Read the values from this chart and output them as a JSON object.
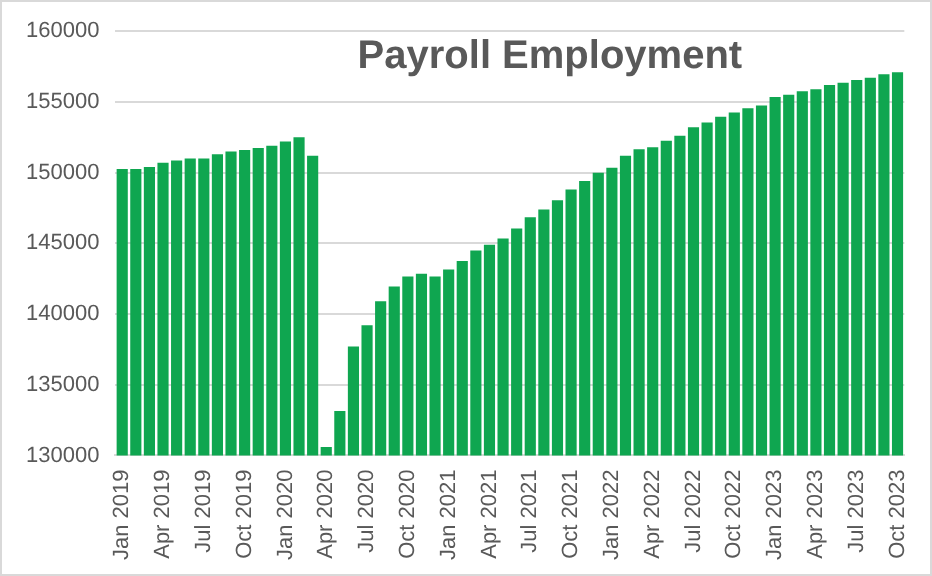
{
  "chart_data": {
    "type": "bar",
    "title": "Payroll Employment",
    "categories": [
      "Jan 2019",
      null,
      null,
      "Apr 2019",
      null,
      null,
      "Jul 2019",
      null,
      null,
      "Oct 2019",
      null,
      null,
      "Jan 2020",
      null,
      null,
      "Apr 2020",
      null,
      null,
      "Jul 2020",
      null,
      null,
      "Oct 2020",
      null,
      null,
      "Jan 2021",
      null,
      null,
      "Apr 2021",
      null,
      null,
      "Jul 2021",
      null,
      null,
      "Oct 2021",
      null,
      null,
      "Jan 2022",
      null,
      null,
      "Apr 2022",
      null,
      null,
      "Jul 2022",
      null,
      null,
      "Oct 2022",
      null,
      null,
      "Jan 2023",
      null,
      null,
      "Apr 2023",
      null,
      null,
      "Jul 2023",
      null,
      null,
      "Oct 2023"
    ],
    "values": [
      150250,
      150250,
      150400,
      150700,
      150850,
      151000,
      151000,
      151300,
      151500,
      151600,
      151750,
      151900,
      152200,
      152500,
      151200,
      130600,
      133150,
      137700,
      139200,
      140900,
      141950,
      142650,
      142850,
      142650,
      143150,
      143750,
      144500,
      144900,
      145350,
      146050,
      146850,
      147400,
      148050,
      148800,
      149400,
      150000,
      150350,
      151200,
      151650,
      151800,
      152250,
      152600,
      153200,
      153550,
      153950,
      154250,
      154550,
      154750,
      155350,
      155500,
      155750,
      155900,
      156200,
      156350,
      156550,
      156700,
      156950,
      157100
    ],
    "color": "#0fa650",
    "ylim": [
      130000,
      160000
    ],
    "yticks": [
      130000,
      135000,
      140000,
      145000,
      150000,
      155000,
      160000
    ],
    "grid": "y"
  }
}
